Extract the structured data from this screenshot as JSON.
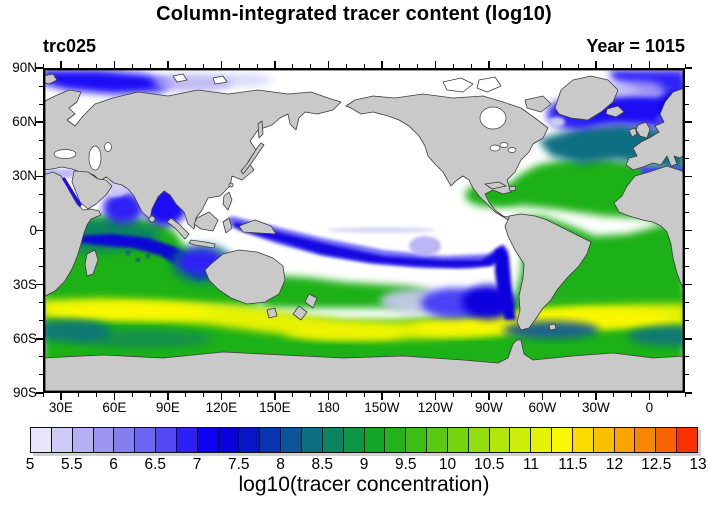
{
  "title": "Column-integrated tracer content (log10)",
  "header": {
    "left_label": "trc025",
    "right_label": "Year = 1015"
  },
  "map": {
    "lat_tick_labels": [
      "90N",
      "60N",
      "30N",
      "0",
      "30S",
      "60S",
      "90S"
    ],
    "lon_tick_labels": [
      "30E",
      "60E",
      "90E",
      "120E",
      "150E",
      "180",
      "150W",
      "120W",
      "90W",
      "60W",
      "30W",
      "0"
    ],
    "land_color": "#C9C9C9",
    "ocean_color": "#FFFFFF",
    "coastline_color": "#3C3C3C",
    "frame_color": "#000000"
  },
  "colorbar": {
    "label": "log10(tracer concentration)",
    "min": 5,
    "max": 13,
    "box_step": 0.25,
    "tick_step": 0.5,
    "tick_labels": [
      "5",
      "5.5",
      "6",
      "6.5",
      "7",
      "7.5",
      "8",
      "8.5",
      "9",
      "9.5",
      "10",
      "10.5",
      "11",
      "11.5",
      "12",
      "12.5",
      "13"
    ],
    "colors": [
      "#E8E5FA",
      "#CFCAF6",
      "#B6AFF3",
      "#9D96F0",
      "#857EF1",
      "#6C64F3",
      "#5349F5",
      "#2D20F7",
      "#0E00F2",
      "#0A00DE",
      "#0715C8",
      "#0936B0",
      "#0B5598",
      "#0C6F82",
      "#0D8460",
      "#0E9644",
      "#13A52A",
      "#22B21A",
      "#3CBE15",
      "#58CA12",
      "#76D40F",
      "#94DE0D",
      "#B0E60A",
      "#CCEE07",
      "#E4F403",
      "#F8F800",
      "#FBDB00",
      "#FBC100",
      "#FAA400",
      "#F98600",
      "#F86300",
      "#FA3000"
    ]
  },
  "chart_data": {
    "type": "heatmap",
    "title": "Column-integrated tracer content (log10)",
    "tracer_id": "trc025",
    "year": 1015,
    "value_label": "log10(tracer concentration)",
    "value_range": [
      5,
      13
    ],
    "contour_interval": 0.25,
    "label_interval": 0.5,
    "projection": "equirectangular world map, longitudes 20E eastward through 180 to 20E (Pacific-centered), latitude 90N to 90S",
    "lat_ticks_deg": [
      90,
      60,
      30,
      0,
      -30,
      -60,
      -90
    ],
    "lon_ticks": [
      "30E",
      "60E",
      "90E",
      "120E",
      "150E",
      "180",
      "150W",
      "120W",
      "90W",
      "60W",
      "30W",
      "0"
    ],
    "legend_position": "horizontal labelbar below map",
    "grid": "off",
    "regions": [
      {
        "name": "North and tropical Pacific interior",
        "approx_log10": "< 5 (unshaded / white)"
      },
      {
        "name": "Southern Ocean circumpolar band 38S-50S",
        "approx_log10": 11
      },
      {
        "name": "Southern Ocean 50S-65S and Antarctic coastal waters",
        "approx_log10": 9.5
      },
      {
        "name": "South Atlantic and Indian Ocean subtropics",
        "approx_log10": 9.5
      },
      {
        "name": "North Atlantic subtropics and Gulf of Mexico",
        "approx_log10": 9
      },
      {
        "name": "North Atlantic subpolar (Iceland-Norway)",
        "approx_log10": 7
      },
      {
        "name": "Arctic shelf seas (Barents/Kara, Greenland Sea)",
        "approx_log10": 6.5
      },
      {
        "name": "Bay of Bengal and eastern Arabian Sea",
        "approx_log10": 7
      },
      {
        "name": "Tropical Indian Ocean band 5S-15S to NW Australia",
        "approx_log10": 8
      },
      {
        "name": "South Pacific band 5S-20S (Melanesia to Peru) and Chile coastal tongue",
        "approx_log10": 8
      },
      {
        "name": "SE Pacific tongue off Chile (35S-45S), fading westward",
        "approx_log10": 6.5
      },
      {
        "name": "Equatorial Pacific faint streak 180-140W",
        "approx_log10": 5.5
      },
      {
        "name": "Mediterranean Sea",
        "approx_log10": 7
      }
    ]
  }
}
